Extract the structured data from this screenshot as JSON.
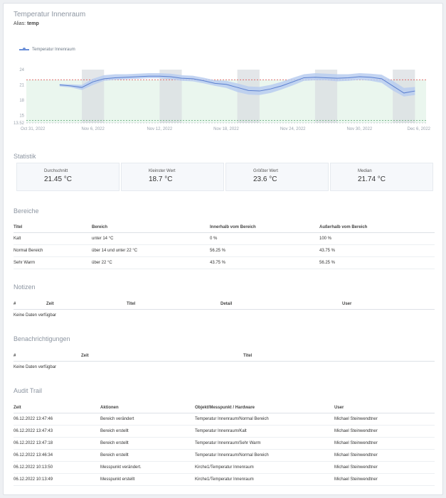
{
  "header": {
    "title": "Temperatur Innenraum",
    "alias_label": "Alias:",
    "alias_value": "temp"
  },
  "chart_data": {
    "type": "line",
    "legend": "Temperatur Innenraum",
    "ylim": [
      13.52,
      24
    ],
    "yticks": [
      13.52,
      15,
      18,
      21,
      24
    ],
    "x_ticks": [
      "Oct 31, 2022",
      "Nov 6, 2022",
      "Nov 12, 2022",
      "Nov 18, 2022",
      "Nov 24, 2022",
      "Nov 30, 2022",
      "Dec 6, 2022"
    ],
    "upper_threshold": 22,
    "lower_threshold": 14,
    "series": [
      {
        "x": [
          "Nov 3",
          "Nov 4",
          "Nov 5",
          "Nov 6",
          "Nov 7",
          "Nov 8",
          "Nov 9",
          "Nov 10",
          "Nov 11",
          "Nov 12",
          "Nov 13",
          "Nov 14",
          "Nov 15",
          "Nov 16",
          "Nov 17",
          "Nov 18",
          "Nov 19",
          "Nov 20",
          "Nov 21",
          "Nov 22",
          "Nov 23",
          "Nov 24",
          "Nov 25",
          "Nov 26",
          "Nov 27",
          "Nov 28",
          "Nov 29",
          "Nov 30",
          "Dec 1",
          "Dec 2",
          "Dec 3",
          "Dec 4",
          "Dec 5"
        ],
        "values": [
          21.0,
          20.8,
          20.5,
          21.6,
          22.2,
          22.4,
          22.5,
          22.6,
          22.7,
          22.7,
          22.6,
          22.3,
          22.2,
          21.8,
          21.3,
          21.1,
          20.5,
          19.9,
          19.8,
          20.2,
          20.8,
          21.6,
          22.4,
          22.5,
          22.4,
          22.3,
          22.4,
          22.6,
          22.5,
          22.2,
          20.8,
          19.4,
          19.8
        ],
        "lower": [
          20.7,
          20.5,
          20.0,
          21.0,
          21.8,
          22.0,
          22.1,
          22.2,
          22.3,
          22.3,
          22.1,
          21.8,
          21.7,
          21.3,
          20.8,
          20.4,
          19.6,
          19.1,
          19.0,
          19.4,
          20.1,
          20.9,
          21.8,
          21.9,
          21.9,
          21.7,
          21.8,
          22.0,
          21.8,
          21.4,
          19.9,
          18.7,
          19.0
        ],
        "upper": [
          21.2,
          21.1,
          21.0,
          22.2,
          22.9,
          23.1,
          23.1,
          23.2,
          23.3,
          23.3,
          23.2,
          22.9,
          22.8,
          22.4,
          21.9,
          21.8,
          21.3,
          20.7,
          20.6,
          21.0,
          21.6,
          22.4,
          23.1,
          23.3,
          23.2,
          23.1,
          23.1,
          23.3,
          23.2,
          23.0,
          21.8,
          20.4,
          20.6
        ]
      }
    ]
  },
  "statistik": {
    "title": "Statistik",
    "items": [
      {
        "label": "Durchschnitt",
        "value": "21.45 °C"
      },
      {
        "label": "Kleinster Wert",
        "value": "18.7 °C"
      },
      {
        "label": "Größter Wert",
        "value": "23.6 °C"
      },
      {
        "label": "Median",
        "value": "21.74 °C"
      }
    ]
  },
  "bereiche": {
    "title": "Bereiche",
    "headers": [
      "Titel",
      "Bereich",
      "Innerhalb vom Bereich",
      "Außerhalb vom Bereich"
    ],
    "rows": [
      [
        "Kalt",
        "unter 14 °C",
        "0 %",
        "100 %"
      ],
      [
        "Normal Bereich",
        "über 14 und unter 22 °C",
        "56.25 %",
        "43.75 %"
      ],
      [
        "Sehr Warm",
        "über 22 °C",
        "43.75 %",
        "56.25 %"
      ]
    ]
  },
  "notizen": {
    "title": "Notizen",
    "headers": [
      "#",
      "Zeit",
      "Titel",
      "Detail",
      "User"
    ],
    "empty": "Keine Daten verfügbar"
  },
  "benachrichtigungen": {
    "title": "Benachrichtigungen",
    "headers": [
      "#",
      "Zeit",
      "Titel"
    ],
    "empty": "Keine Daten verfügbar"
  },
  "audit": {
    "title": "Audit Trail",
    "headers": [
      "Zeit",
      "Aktionen",
      "Objekt/Messpunkt / Hardware",
      "User"
    ],
    "rows": [
      [
        "06.12.2022 13:47:46",
        "Bereich verändert",
        "Temperatur Innenraum/Normal Bereich",
        "Michael Steinwendtner"
      ],
      [
        "06.12.2022 13:47:43",
        "Bereich erstellt",
        "Temperatur Innenraum/Kalt",
        "Michael Steinwendtner"
      ],
      [
        "06.12.2022 13:47:18",
        "Bereich erstellt",
        "Temperatur Innenraum/Sehr Warm",
        "Michael Steinwendtner"
      ],
      [
        "06.12.2022 13:46:34",
        "Bereich erstellt",
        "Temperatur Innenraum/Normal Bereich",
        "Michael Steinwendtner"
      ],
      [
        "06.12.2022 10:13:50",
        "Messpunkt verändert.",
        "Kirche1/Temperatur Innenraum",
        "Michael Steinwendtner"
      ],
      [
        "06.12.2022 10:13:49",
        "Messpunkt erstellt",
        "Kirche1/Temperatur Innenraum",
        "Michael Steinwendtner"
      ]
    ]
  }
}
